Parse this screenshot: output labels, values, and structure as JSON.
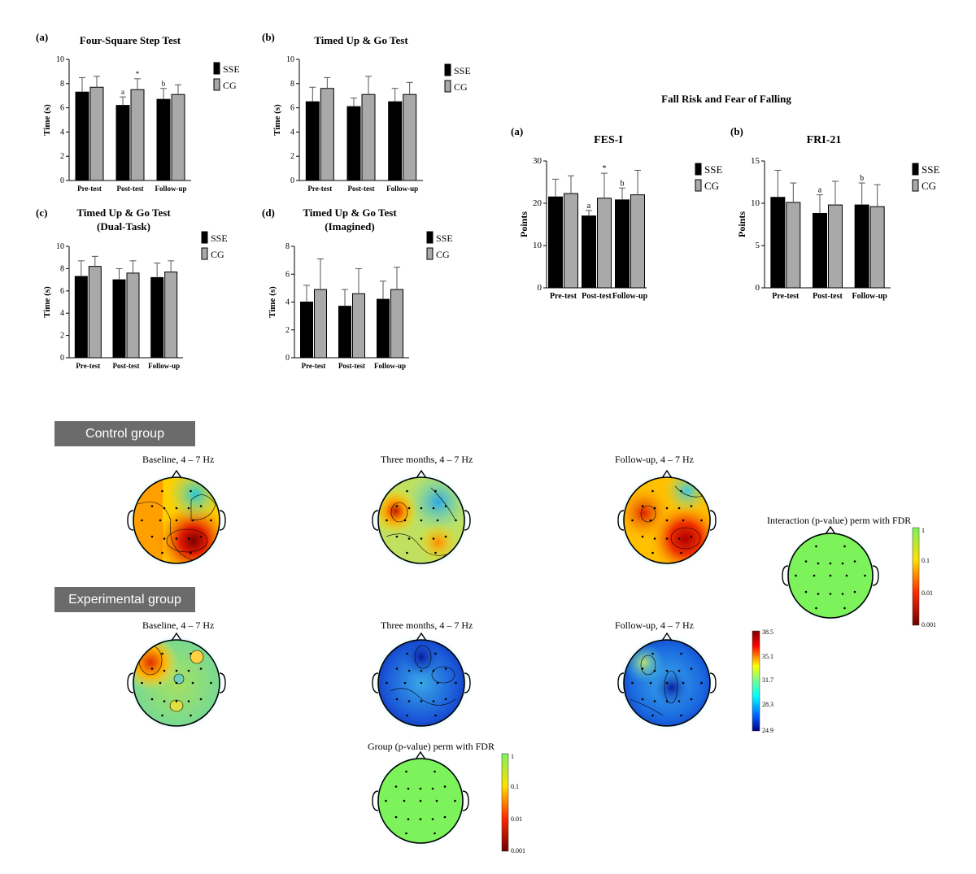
{
  "bar_charts": {
    "section_title": "Fall Risk and Fear of Falling",
    "panels": [
      {
        "id": "fsst",
        "letter": "(a)",
        "title": "Four-Square Step Test",
        "subtitle": "",
        "ylabel": "Time (s)"
      },
      {
        "id": "tug",
        "letter": "(b)",
        "title": "Timed Up & Go Test",
        "subtitle": "",
        "ylabel": "Time (s)"
      },
      {
        "id": "tugdt",
        "letter": "(c)",
        "title": "Timed Up & Go Test",
        "subtitle": "(Dual-Task)",
        "ylabel": "Time (s)"
      },
      {
        "id": "tugim",
        "letter": "(d)",
        "title": "Timed Up & Go Test",
        "subtitle": "(Imagined)",
        "ylabel": "Time (s)"
      },
      {
        "id": "fesi",
        "letter": "(a)",
        "title": "FES-I",
        "subtitle": "",
        "ylabel": "Points"
      },
      {
        "id": "fri21",
        "letter": "(b)",
        "title": "FRI-21",
        "subtitle": "",
        "ylabel": "Points"
      }
    ]
  },
  "chart_data": [
    {
      "type": "bar",
      "panel": "fsst",
      "categories": [
        "Pre-test",
        "Post-test",
        "Follow-up"
      ],
      "ylim": [
        0,
        10
      ],
      "yticks": [
        0,
        2,
        4,
        6,
        8,
        10
      ],
      "series": [
        {
          "name": "SSE",
          "values": [
            7.3,
            6.2,
            6.7
          ],
          "errors": [
            1.2,
            0.7,
            0.9
          ]
        },
        {
          "name": "CG",
          "values": [
            7.7,
            7.5,
            7.1
          ],
          "errors": [
            0.9,
            0.9,
            0.8
          ]
        }
      ],
      "annotations": [
        {
          "category": "Post-test",
          "series": "SSE",
          "text": "a"
        },
        {
          "category": "Post-test",
          "series": "CG",
          "text": "*"
        },
        {
          "category": "Follow-up",
          "series": "SSE",
          "text": "b"
        }
      ]
    },
    {
      "type": "bar",
      "panel": "tug",
      "categories": [
        "Pre-test",
        "Post-test",
        "Follow-up"
      ],
      "ylim": [
        0,
        10
      ],
      "yticks": [
        0,
        2,
        4,
        6,
        8,
        10
      ],
      "series": [
        {
          "name": "SSE",
          "values": [
            6.5,
            6.1,
            6.5
          ],
          "errors": [
            1.2,
            0.7,
            1.1
          ]
        },
        {
          "name": "CG",
          "values": [
            7.6,
            7.1,
            7.1
          ],
          "errors": [
            0.9,
            1.5,
            1.0
          ]
        }
      ],
      "annotations": []
    },
    {
      "type": "bar",
      "panel": "tugdt",
      "categories": [
        "Pre-test",
        "Post-test",
        "Follow-up"
      ],
      "ylim": [
        0,
        10
      ],
      "yticks": [
        0,
        2,
        4,
        6,
        8,
        10
      ],
      "series": [
        {
          "name": "SSE",
          "values": [
            7.3,
            7.0,
            7.2
          ],
          "errors": [
            1.4,
            1.0,
            1.3
          ]
        },
        {
          "name": "CG",
          "values": [
            8.2,
            7.6,
            7.7
          ],
          "errors": [
            0.9,
            1.1,
            1.0
          ]
        }
      ],
      "annotations": []
    },
    {
      "type": "bar",
      "panel": "tugim",
      "categories": [
        "Pre-test",
        "Post-test",
        "Follow-up"
      ],
      "ylim": [
        0,
        8
      ],
      "yticks": [
        0,
        2,
        4,
        6,
        8
      ],
      "series": [
        {
          "name": "SSE",
          "values": [
            4.0,
            3.7,
            4.2
          ],
          "errors": [
            1.2,
            1.2,
            1.3
          ]
        },
        {
          "name": "CG",
          "values": [
            4.9,
            4.6,
            4.9
          ],
          "errors": [
            2.2,
            1.8,
            1.6
          ]
        }
      ],
      "annotations": []
    },
    {
      "type": "bar",
      "panel": "fesi",
      "categories": [
        "Pre-test",
        "Post-test",
        "Follow-up"
      ],
      "ylim": [
        0,
        30
      ],
      "yticks": [
        0,
        10,
        20,
        30
      ],
      "series": [
        {
          "name": "SSE",
          "values": [
            21.5,
            17.0,
            20.8
          ],
          "errors": [
            4.2,
            1.3,
            2.8
          ]
        },
        {
          "name": "CG",
          "values": [
            22.3,
            21.2,
            22.0
          ],
          "errors": [
            4.2,
            5.9,
            5.8
          ]
        }
      ],
      "annotations": [
        {
          "category": "Post-test",
          "series": "SSE",
          "text": "a"
        },
        {
          "category": "Post-test",
          "series": "CG",
          "text": "*"
        },
        {
          "category": "Follow-up",
          "series": "SSE",
          "text": "b"
        }
      ]
    },
    {
      "type": "bar",
      "panel": "fri21",
      "categories": [
        "Pre-test",
        "Post-test",
        "Follow-up"
      ],
      "ylim": [
        0,
        15
      ],
      "yticks": [
        0,
        5,
        10,
        15
      ],
      "series": [
        {
          "name": "SSE",
          "values": [
            10.7,
            8.8,
            9.8
          ],
          "errors": [
            3.2,
            2.2,
            2.6
          ]
        },
        {
          "name": "CG",
          "values": [
            10.1,
            9.8,
            9.6
          ],
          "errors": [
            2.3,
            2.8,
            2.6
          ]
        }
      ],
      "annotations": [
        {
          "category": "Post-test",
          "series": "SSE",
          "text": "a"
        },
        {
          "category": "Follow-up",
          "series": "SSE",
          "text": "b"
        }
      ]
    }
  ],
  "eeg": {
    "groups": [
      {
        "label": "Control group"
      },
      {
        "label": "Experimental group"
      }
    ],
    "map_titles": [
      "Baseline, 4 – 7 Hz",
      "Three months, 4 – 7 Hz",
      "Follow-up, 4 – 7 Hz"
    ],
    "stat_titles": {
      "interaction": "Interaction (p-value) perm with FDR",
      "group": "Group (p-value) perm with FDR"
    },
    "power_colorbar_ticks": [
      "38.5",
      "35.1",
      "31.7",
      "28.3",
      "24.9"
    ],
    "pvalue_colorbar_ticks": [
      "1",
      "0.1",
      "0.01",
      "0.001"
    ],
    "colors": {
      "sse": "#000000",
      "cg": "#a9a9a9",
      "group_label_bg": "#6b6b6b",
      "stat_fill": "#7cf35a"
    }
  }
}
